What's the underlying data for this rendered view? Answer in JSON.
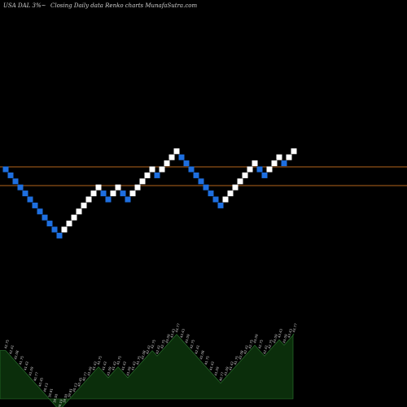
{
  "header": {
    "ticker_text": "USA DAL 3%~",
    "subtitle": "Closing Daily data Renko charts MunafaSutra.com"
  },
  "colors": {
    "background": "#000000",
    "up_brick": "#ffffff",
    "down_brick": "#1e6fe0",
    "level_line": "#b5651d",
    "volume_fill": "#0b2e0b",
    "volume_edge": "#2e7d32"
  },
  "chart_data": {
    "type": "renko",
    "directions": [
      "d",
      "d",
      "d",
      "d",
      "d",
      "d",
      "d",
      "d",
      "d",
      "d",
      "d",
      "d",
      "u",
      "u",
      "u",
      "u",
      "u",
      "u",
      "u",
      "u",
      "d",
      "d",
      "u",
      "u",
      "d",
      "d",
      "u",
      "u",
      "u",
      "u",
      "u",
      "d",
      "u",
      "u",
      "u",
      "u",
      "d",
      "d",
      "d",
      "d",
      "d",
      "d",
      "d",
      "d",
      "d",
      "u",
      "u",
      "u",
      "u",
      "u",
      "u",
      "u",
      "d",
      "d",
      "u",
      "u",
      "u",
      "d",
      "u",
      "u"
    ],
    "levels": [
      null,
      null
    ],
    "volume_labels": [
      "42.75",
      "42.41",
      "42.08",
      "41.75",
      "41.42",
      "41.09",
      "40.77",
      "40.45",
      "40.13",
      "39.81",
      "39.50",
      "39.19",
      "39.50",
      "39.81",
      "40.13",
      "40.45",
      "40.77",
      "41.09",
      "41.42",
      "41.75",
      "41.42",
      "41.09",
      "41.42",
      "41.75",
      "41.42",
      "41.09",
      "41.42",
      "41.75",
      "42.08",
      "42.41",
      "42.75",
      "42.41",
      "42.75",
      "43.09",
      "43.43",
      "43.77",
      "43.43",
      "43.09",
      "42.75",
      "42.41",
      "42.08",
      "41.75",
      "41.42",
      "41.09",
      "40.77",
      "41.09",
      "41.42",
      "41.75",
      "42.08",
      "42.41",
      "42.75",
      "43.09",
      "42.75",
      "42.41",
      "42.75",
      "43.09",
      "43.43",
      "43.09",
      "43.43",
      "43.77"
    ]
  }
}
